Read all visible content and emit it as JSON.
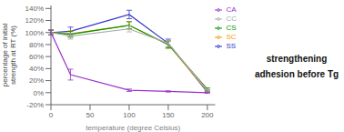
{
  "chart_data": {
    "type": "line",
    "x": [
      0,
      25,
      100,
      150,
      200
    ],
    "xlabel": "temperature (degree Celsius)",
    "ylabel": "percentage of initial\nstrength at RT (%)",
    "xlim": [
      0,
      210
    ],
    "xticks": [
      0,
      50,
      100,
      150,
      200
    ],
    "ylim": [
      -20,
      145
    ],
    "yticks": [
      {
        "value": -20,
        "label": "-20%"
      },
      {
        "value": 0,
        "label": "0%"
      },
      {
        "value": 20,
        "label": "20%"
      },
      {
        "value": 40,
        "label": "40%"
      },
      {
        "value": 60,
        "label": "60%"
      },
      {
        "value": 80,
        "label": "80%"
      },
      {
        "value": 100,
        "label": "100%"
      },
      {
        "value": 120,
        "label": "120%"
      },
      {
        "value": 140,
        "label": "140%"
      }
    ],
    "series": [
      {
        "name": "SS",
        "color": "#3333cc",
        "values": [
          100,
          102,
          130,
          82,
          1
        ],
        "errors": [
          4,
          7,
          7,
          7,
          1
        ]
      },
      {
        "name": "SC",
        "color": "#ff9900",
        "values": [
          100,
          98,
          112,
          80,
          3
        ],
        "errors": [
          4,
          5,
          6,
          6,
          2
        ]
      },
      {
        "name": "CS",
        "color": "#009900",
        "values": [
          100,
          97,
          112,
          80,
          6
        ],
        "errors": [
          4,
          5,
          6,
          6,
          2
        ]
      },
      {
        "name": "CC",
        "color": "#aaaaaa",
        "values": [
          100,
          94,
          106,
          82,
          4
        ],
        "errors": [
          4,
          5,
          5,
          5,
          2
        ]
      },
      {
        "name": "CA",
        "color": "#9933cc",
        "values": [
          100,
          30,
          4,
          2,
          0
        ],
        "errors": [
          4,
          9,
          2,
          1,
          1
        ]
      }
    ],
    "legend": "upper right",
    "grid": false,
    "annotations": [
      "strengthening",
      "adhesion before Tg"
    ]
  }
}
